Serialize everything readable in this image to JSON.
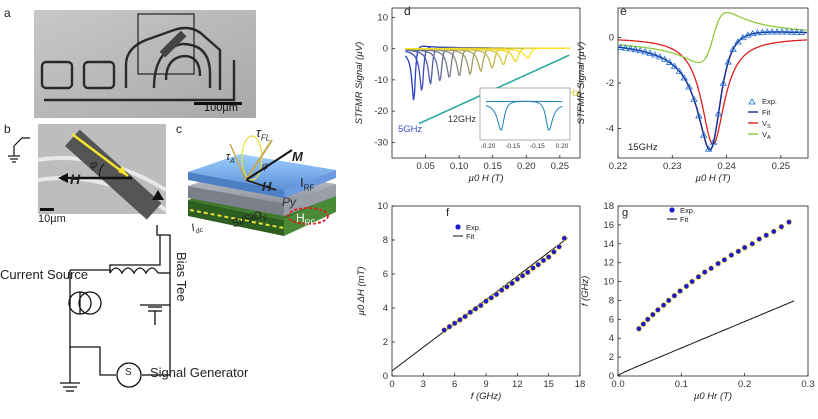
{
  "panels": {
    "a": {
      "letter": "a",
      "scale_bar": "100µm"
    },
    "b": {
      "letter": "b",
      "field_label": "H",
      "angle_label": "φ",
      "scale_bar": "10µm"
    },
    "c": {
      "letter": "c",
      "tau_fl": "τ",
      "tau_fl_sub": "FL",
      "tau_a": "τ",
      "tau_a_sub": "A",
      "m_label": "M",
      "h_label": "H",
      "phi": "φ",
      "irf": "I",
      "irf_sub": "RF",
      "py": "Py",
      "idc": "I",
      "idc_sub": "dc",
      "substrate": "Si/SiO",
      "substrate_sub": "2",
      "hrf": "H",
      "hrf_sub": "RF"
    },
    "circuit": {
      "current_source": "Current Source",
      "bias_tee": "Bias Tee",
      "signal_generator": "Signal Generator",
      "generator_symbol": "S"
    },
    "d": {
      "letter": "d",
      "low_freq_label": "5GHz",
      "high_freq_label": "16GHz",
      "inset_label": "12GHz"
    },
    "e": {
      "letter": "e",
      "freq_label": "15GHz"
    },
    "f": {
      "letter": "f"
    },
    "g": {
      "letter": "g"
    }
  },
  "chart_data": [
    {
      "id": "d",
      "type": "line",
      "ylabel": "STFMR Signal (µV)",
      "xlabel": "µ0 H (T)",
      "xlim": [
        0.0,
        0.28
      ],
      "ylim": [
        -35,
        13
      ],
      "xticks": [
        "0.05",
        "0.10",
        "0.15",
        "0.20",
        "0.25"
      ],
      "yticks": [
        "-30",
        "-20",
        "-10",
        "0",
        "10"
      ],
      "series": [
        {
          "f": 5,
          "H0": 0.033,
          "w": 0.003,
          "S": -16,
          "A": 7
        },
        {
          "f": 6,
          "H0": 0.045,
          "w": 0.0032,
          "S": -13,
          "A": 5.5
        },
        {
          "f": 7,
          "H0": 0.058,
          "w": 0.0034,
          "S": -11,
          "A": 4.5
        },
        {
          "f": 8,
          "H0": 0.072,
          "w": 0.0036,
          "S": -10,
          "A": 4
        },
        {
          "f": 9,
          "H0": 0.086,
          "w": 0.0038,
          "S": -9,
          "A": 3.5
        },
        {
          "f": 10,
          "H0": 0.101,
          "w": 0.004,
          "S": -8.5,
          "A": 3
        },
        {
          "f": 11,
          "H0": 0.117,
          "w": 0.0042,
          "S": -8,
          "A": 2.7
        },
        {
          "f": 12,
          "H0": 0.133,
          "w": 0.0044,
          "S": -7,
          "A": 2.4
        },
        {
          "f": 13,
          "H0": 0.15,
          "w": 0.0046,
          "S": -6,
          "A": 2.1
        },
        {
          "f": 14,
          "H0": 0.167,
          "w": 0.0048,
          "S": -5,
          "A": 1.8
        },
        {
          "f": 15,
          "H0": 0.185,
          "w": 0.005,
          "S": -4,
          "A": 1.5
        },
        {
          "f": 16,
          "H0": 0.203,
          "w": 0.0052,
          "S": -3,
          "A": 1.2
        }
      ],
      "inset": {
        "xticks": [
          "-0.20",
          "-0.15",
          "-0.15",
          "0.20"
        ]
      }
    },
    {
      "id": "e",
      "type": "line",
      "ylabel": "STFMR Signal (µV)",
      "xlabel": "µ0 H (T)",
      "xlim": [
        0.22,
        0.255
      ],
      "ylim": [
        -5.3,
        1.3
      ],
      "xticks": [
        0.22,
        0.23,
        0.24,
        0.25
      ],
      "yticks": [
        -4,
        -2,
        0
      ],
      "H0": 0.2375,
      "w": 0.0026,
      "S": -4.7,
      "A": 2.2,
      "legend": [
        "Exp.",
        "Fit",
        "V",
        "V"
      ],
      "legend_subs": [
        "",
        "",
        "S",
        "A"
      ],
      "legend_colors": [
        "#1f6fd6",
        "#1a2a8a",
        "#e02020",
        "#8ccc3a"
      ]
    },
    {
      "id": "f",
      "type": "scatter",
      "ylabel": "µ0 ΔH (mT)",
      "xlabel": "f (GHz)",
      "xlim": [
        0,
        18
      ],
      "ylim": [
        0,
        10
      ],
      "xticks": [
        0,
        3,
        6,
        9,
        12,
        15,
        18
      ],
      "yticks": [
        0,
        2,
        4,
        6,
        8,
        10
      ],
      "x": [
        5,
        5.5,
        6,
        6.5,
        7,
        7.5,
        8,
        8.5,
        9,
        9.5,
        10,
        10.5,
        11,
        11.5,
        12,
        12.5,
        13,
        13.5,
        14,
        14.5,
        15,
        15.5,
        16,
        16.5
      ],
      "y": [
        2.7,
        2.9,
        3.1,
        3.3,
        3.5,
        3.75,
        3.95,
        4.15,
        4.4,
        4.6,
        4.8,
        5.05,
        5.25,
        5.45,
        5.7,
        5.9,
        6.1,
        6.35,
        6.55,
        6.8,
        7.0,
        7.3,
        7.6,
        8.1
      ],
      "fit_slope": 0.465,
      "fit_intercept": 0.3,
      "legend": [
        "Exp.",
        "Fit"
      ]
    },
    {
      "id": "g",
      "type": "scatter",
      "ylabel": "f (GHz)",
      "xlabel": "µ0 Hr (T)",
      "xlim": [
        0,
        0.3
      ],
      "ylim": [
        0,
        18
      ],
      "xticks": [
        "0.0",
        "0.1",
        "0.2",
        "0.3"
      ],
      "yticks": [
        0,
        2,
        4,
        6,
        8,
        10,
        12,
        14,
        16,
        18
      ],
      "x": [
        0.033,
        0.04,
        0.047,
        0.055,
        0.063,
        0.072,
        0.08,
        0.089,
        0.098,
        0.108,
        0.117,
        0.127,
        0.137,
        0.147,
        0.158,
        0.168,
        0.179,
        0.19,
        0.2,
        0.212,
        0.223,
        0.234,
        0.246,
        0.258,
        0.27
      ],
      "y": [
        5.0,
        5.5,
        6.0,
        6.5,
        7.0,
        7.5,
        8.0,
        8.5,
        9.0,
        9.5,
        10.0,
        10.5,
        11.0,
        11.4,
        11.9,
        12.3,
        12.8,
        13.2,
        13.6,
        14.0,
        14.5,
        14.9,
        15.3,
        15.8,
        16.3
      ],
      "legend": [
        "Exp.",
        "Fit"
      ]
    }
  ]
}
